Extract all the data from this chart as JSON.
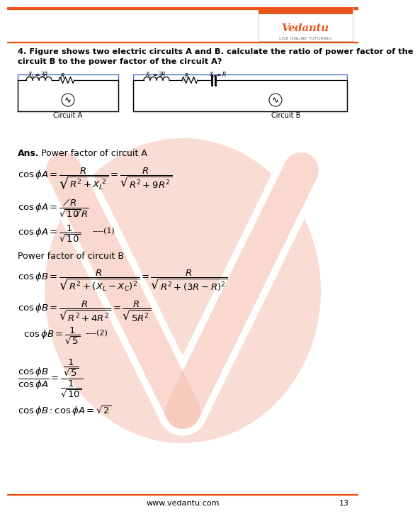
{
  "bg_color": "#ffffff",
  "orange_color": "#e8541a",
  "watermark_salmon": "#f5c5b5",
  "text_black": "#000000",
  "question_line1": "4. Figure shows two electric circuits A and B. calculate the ratio of power factor of the",
  "question_line2": "circuit B to the power factor of the circuit A?",
  "circuit_A_label": "Circuit A",
  "circuit_B_label": "Circuit B",
  "footer_text": "www.vedantu.com",
  "page_num": "13",
  "logo_text": "Vedantu",
  "logo_sub": "LIVE ONLINE TUTORING"
}
